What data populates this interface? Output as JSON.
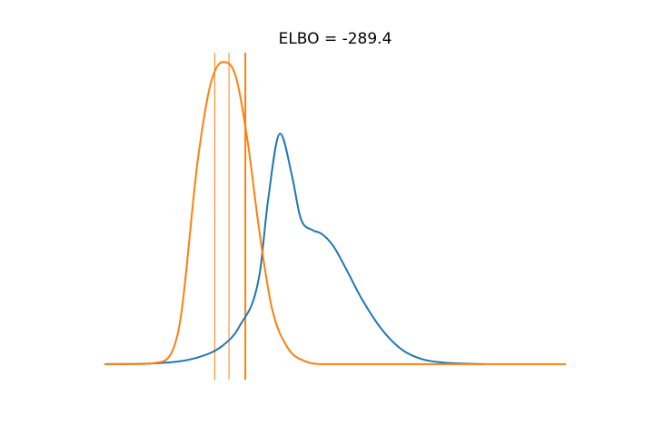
{
  "chart_data": {
    "type": "line",
    "title": "ELBO = -289.4",
    "xlabel": "",
    "ylabel": "",
    "axes_visible": false,
    "grid": false,
    "legend": "none",
    "xlim": [
      -2.3,
      9.0
    ],
    "ylim": [
      -0.05,
      1.0
    ],
    "series": [
      {
        "color": "#1f77b4",
        "x": [
          -2.3,
          -1.0,
          0.0,
          0.6,
          1.0,
          1.5,
          1.7,
          2.0,
          2.3,
          2.5,
          2.8,
          3.0,
          3.3,
          3.6,
          4.0,
          4.5,
          5.0,
          5.5,
          6.0,
          7.0
        ],
        "y": [
          0.0,
          0.003,
          0.022,
          0.06,
          0.12,
          0.29,
          0.52,
          0.74,
          0.6,
          0.47,
          0.43,
          0.42,
          0.38,
          0.31,
          0.21,
          0.11,
          0.045,
          0.015,
          0.005,
          0.0
        ]
      },
      {
        "color": "#ff7f0e",
        "x": [
          -2.3,
          -1.5,
          -1.0,
          -0.5,
          0.0,
          0.3,
          0.6,
          0.9,
          1.2,
          1.5,
          1.8,
          2.2,
          2.6,
          3.0,
          4.0,
          9.0
        ],
        "y": [
          0.0,
          0.0,
          0.005,
          0.1,
          0.67,
          0.9,
          0.97,
          0.93,
          0.72,
          0.42,
          0.18,
          0.05,
          0.01,
          0.0,
          0.0,
          0.0
        ]
      }
    ],
    "vlines": [
      {
        "x": 0.4,
        "color": "#ff7f0e",
        "width": 1
      },
      {
        "x": 0.75,
        "color": "#ff7f0e",
        "width": 1
      },
      {
        "x": 1.15,
        "color": "#ff7f0e",
        "width": 2
      }
    ]
  }
}
